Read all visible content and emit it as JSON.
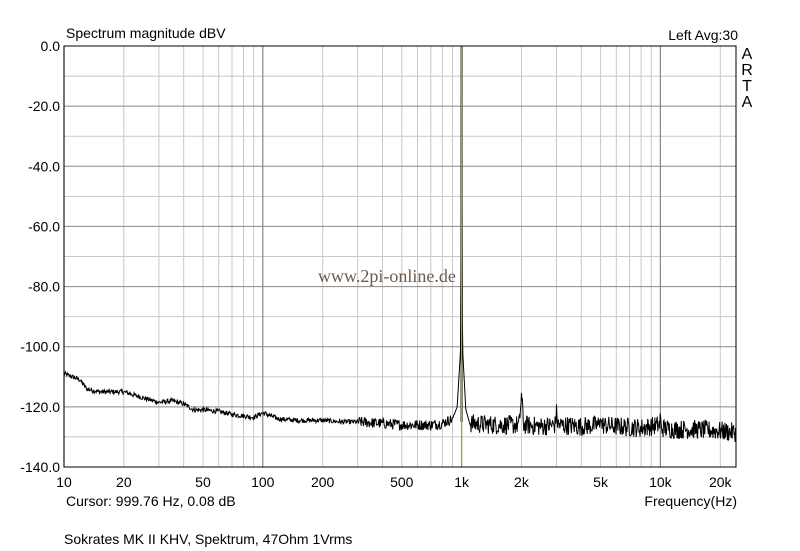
{
  "chart_data": {
    "type": "line",
    "title": "Spectrum magnitude dBV",
    "channel_info": "Left  Avg:30",
    "xlabel": "Frequency(Hz)",
    "ylabel": "",
    "x_scale": "log",
    "xlim": [
      10,
      24000
    ],
    "ylim": [
      -140,
      0
    ],
    "grid": true,
    "x_tick_labels": [
      {
        "value": 10,
        "label": "10"
      },
      {
        "value": 20,
        "label": "20"
      },
      {
        "value": 50,
        "label": "50"
      },
      {
        "value": 100,
        "label": "100"
      },
      {
        "value": 200,
        "label": "200"
      },
      {
        "value": 500,
        "label": "500"
      },
      {
        "value": 1000,
        "label": "1k"
      },
      {
        "value": 2000,
        "label": "2k"
      },
      {
        "value": 5000,
        "label": "5k"
      },
      {
        "value": 10000,
        "label": "10k"
      },
      {
        "value": 20000,
        "label": "20k"
      }
    ],
    "y_tick_labels": [
      {
        "value": 0,
        "label": "0.0"
      },
      {
        "value": -20,
        "label": "-20.0"
      },
      {
        "value": -40,
        "label": "-40.0"
      },
      {
        "value": -60,
        "label": "-60.0"
      },
      {
        "value": -80,
        "label": "-80.0"
      },
      {
        "value": -100,
        "label": "-100.0"
      },
      {
        "value": -120,
        "label": "-120.0"
      },
      {
        "value": -140,
        "label": "-140.0"
      }
    ],
    "cursor": {
      "frequency": 999.76,
      "level_db": 0.08
    },
    "cursor_text": "Cursor: 999.76 Hz, 0.08 dB",
    "series": [
      {
        "values_approx": [
          [
            10,
            -109
          ],
          [
            11,
            -110
          ],
          [
            12,
            -111
          ],
          [
            13,
            -114
          ],
          [
            15,
            -115
          ],
          [
            17,
            -115
          ],
          [
            20,
            -115
          ],
          [
            25,
            -117
          ],
          [
            30,
            -118.5
          ],
          [
            35,
            -118
          ],
          [
            40,
            -119
          ],
          [
            45,
            -121
          ],
          [
            50,
            -121
          ],
          [
            60,
            -121.5
          ],
          [
            70,
            -122.5
          ],
          [
            80,
            -123
          ],
          [
            90,
            -123.5
          ],
          [
            100,
            -122
          ],
          [
            120,
            -124
          ],
          [
            150,
            -124.5
          ],
          [
            200,
            -124.5
          ],
          [
            250,
            -125
          ],
          [
            300,
            -125
          ],
          [
            400,
            -125.5
          ],
          [
            500,
            -126
          ],
          [
            600,
            -126
          ],
          [
            700,
            -126
          ],
          [
            800,
            -125.5
          ],
          [
            900,
            -124
          ],
          [
            950,
            -120
          ],
          [
            990,
            -100
          ],
          [
            999.76,
            0.08
          ],
          [
            1010,
            -100
          ],
          [
            1050,
            -121
          ],
          [
            1100,
            -125.5
          ],
          [
            1500,
            -126
          ],
          [
            1950,
            -126
          ],
          [
            2000,
            -116
          ],
          [
            2050,
            -126
          ],
          [
            2500,
            -126.5
          ],
          [
            2950,
            -126
          ],
          [
            3000,
            -122
          ],
          [
            3050,
            -126
          ],
          [
            4000,
            -126.5
          ],
          [
            4950,
            -126
          ],
          [
            5000,
            -121
          ],
          [
            5050,
            -126
          ],
          [
            6000,
            -126.5
          ],
          [
            8000,
            -127
          ],
          [
            9950,
            -126
          ],
          [
            10000,
            -121
          ],
          [
            10050,
            -127
          ],
          [
            12000,
            -127.5
          ],
          [
            15000,
            -127.5
          ],
          [
            20000,
            -128
          ],
          [
            24000,
            -128.5
          ]
        ],
        "line_color": "#000000"
      }
    ],
    "cursor_line_color": "#b8a000"
  },
  "branding": {
    "arta_letters": [
      "A",
      "R",
      "T",
      "A"
    ],
    "watermark": "www.2pi-online.de"
  },
  "footer": {
    "caption": "Sokrates MK II KHV, Spektrum, 47Ohm 1Vrms"
  }
}
